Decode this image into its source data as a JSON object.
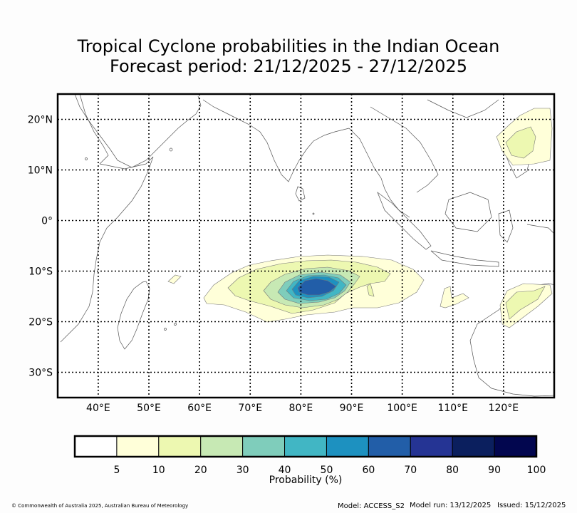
{
  "title": {
    "line1": "Tropical Cyclone probabilities in the Indian Ocean",
    "line2": "Forecast period: 21/12/2025 - 27/12/2025"
  },
  "map": {
    "lon_range": [
      32,
      130
    ],
    "lat_range": [
      -35,
      25
    ],
    "lon_ticks": [
      {
        "value": 40,
        "label": "40°E"
      },
      {
        "value": 50,
        "label": "50°E"
      },
      {
        "value": 60,
        "label": "60°E"
      },
      {
        "value": 70,
        "label": "70°E"
      },
      {
        "value": 80,
        "label": "80°E"
      },
      {
        "value": 90,
        "label": "90°E"
      },
      {
        "value": 100,
        "label": "100°E"
      },
      {
        "value": 110,
        "label": "110°E"
      },
      {
        "value": 120,
        "label": "120°E"
      }
    ],
    "lat_ticks": [
      {
        "value": 20,
        "label": "20°N"
      },
      {
        "value": 10,
        "label": "10°N"
      },
      {
        "value": 0,
        "label": "0°"
      },
      {
        "value": -10,
        "label": "10°S"
      },
      {
        "value": -20,
        "label": "20°S"
      },
      {
        "value": -30,
        "label": "30°S"
      }
    ]
  },
  "colorbar": {
    "label": "Probability (%)",
    "colors": [
      "#ffffff",
      "#ffffd9",
      "#edf8b1",
      "#c7e9b4",
      "#7fcdbb",
      "#41b6c4",
      "#1d91c0",
      "#225ea8",
      "#253494",
      "#0b1f5e",
      "#02064f"
    ],
    "ticks": [
      "5",
      "10",
      "20",
      "30",
      "40",
      "50",
      "60",
      "70",
      "80",
      "90",
      "100"
    ]
  },
  "footer": {
    "copyright": "© Commonwealth of Australia 2025, Australian Bureau of Meteorology",
    "model": "Model: ACCESS_S2",
    "model_run": "Model run: 13/12/2025",
    "issued": "Issued: 15/12/2025"
  }
}
